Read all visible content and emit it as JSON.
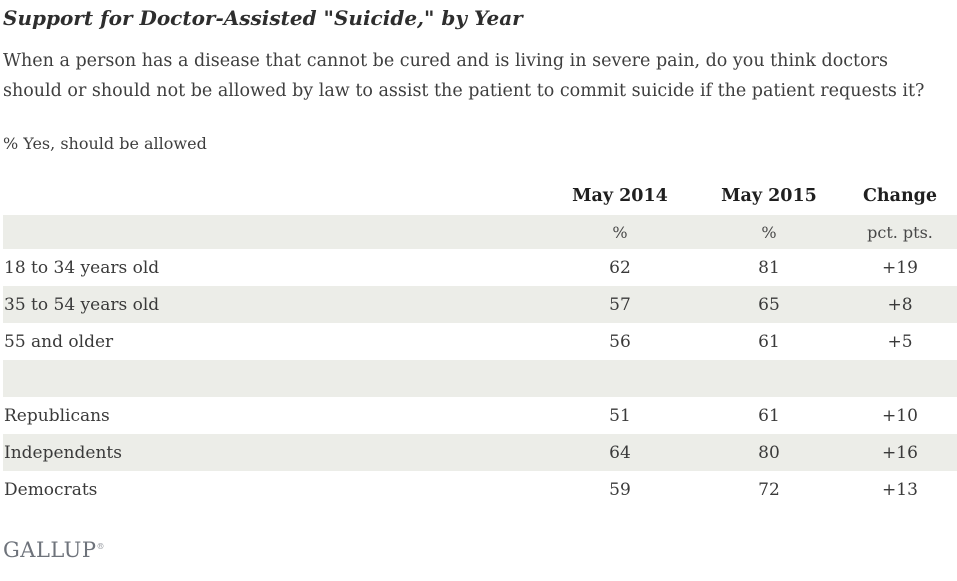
{
  "title": "Support for Doctor-Assisted \"Suicide,\" by Year",
  "question_lines": [
    "When a person has a disease that cannot be cured and is living in severe pain, do you think doctors",
    "should or should not be allowed by law to assist the patient to commit suicide if the patient requests it?"
  ],
  "measure_label": "% Yes, should be allowed",
  "table": {
    "headers": {
      "label": "",
      "may_2014": "May 2014",
      "may_2015": "May 2015",
      "change": "Change"
    },
    "units": {
      "label": "",
      "may_2014": "%",
      "may_2015": "%",
      "change": "pct. pts."
    },
    "rows": [
      {
        "label": "18 to 34 years old",
        "may_2014": "62",
        "may_2015": "81",
        "change": "+19"
      },
      {
        "label": "35 to 54 years old",
        "may_2014": "57",
        "may_2015": "65",
        "change": "+8"
      },
      {
        "label": "55 and older",
        "may_2014": "56",
        "may_2015": "61",
        "change": "+5"
      },
      {
        "label": "",
        "may_2014": "",
        "may_2015": "",
        "change": ""
      },
      {
        "label": "Republicans",
        "may_2014": "51",
        "may_2015": "61",
        "change": "+10"
      },
      {
        "label": "Independents",
        "may_2014": "64",
        "may_2015": "80",
        "change": "+16"
      },
      {
        "label": "Democrats",
        "may_2014": "59",
        "may_2015": "72",
        "change": "+13"
      }
    ]
  },
  "footer": {
    "logo": "GALLUP",
    "trademark": "®"
  },
  "colors": {
    "row_shade": "#ecede8",
    "title_text": "#2e2e2e",
    "body_text": "#3e3e3e",
    "logo_gray": "#6e737b"
  },
  "chart_data": {
    "type": "table",
    "title": "Support for Doctor-Assisted \"Suicide,\" by Year",
    "subtitle": "When a person has a disease that cannot be cured and is living in severe pain, do you think doctors should or should not be allowed by law to assist the patient to commit suicide if the patient requests it?",
    "measure": "% Yes, should be allowed",
    "columns": [
      "May 2014",
      "May 2015",
      "Change"
    ],
    "units": [
      "%",
      "%",
      "pct. pts."
    ],
    "categories": [
      "18 to 34 years old",
      "35 to 54 years old",
      "55 and older",
      "Republicans",
      "Independents",
      "Democrats"
    ],
    "series": [
      {
        "name": "May 2014",
        "values": [
          62,
          57,
          56,
          51,
          64,
          59
        ]
      },
      {
        "name": "May 2015",
        "values": [
          81,
          65,
          61,
          61,
          80,
          72
        ]
      },
      {
        "name": "Change (pct. pts.)",
        "values": [
          19,
          8,
          5,
          10,
          16,
          13
        ]
      }
    ],
    "source": "GALLUP"
  }
}
